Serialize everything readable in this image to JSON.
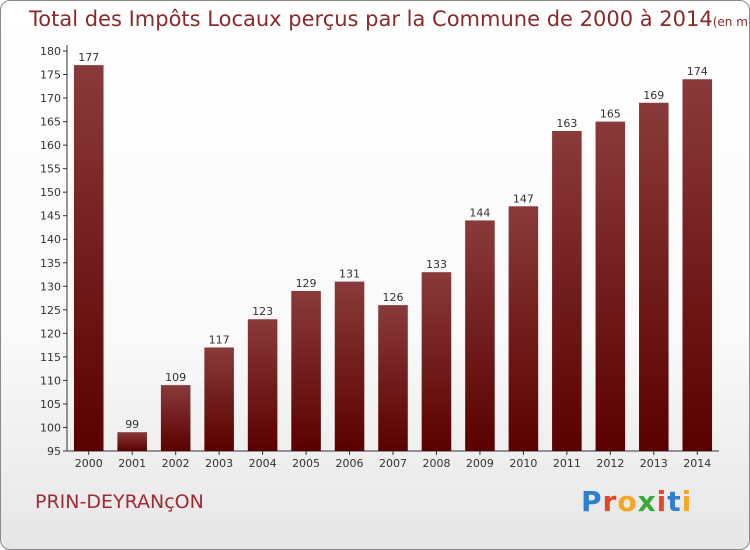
{
  "header": {
    "title": "Total des Impôts Locaux perçus par la Commune de 2000 à 2014",
    "subtitle": "(en milliers d'€)"
  },
  "commune_label": "PRIN-DEYRANçON",
  "logo": {
    "text": "Proxiti",
    "letters": [
      {
        "ch": "P",
        "color": "#2f7fd0"
      },
      {
        "ch": "r",
        "color": "#e8452a"
      },
      {
        "ch": "o",
        "color": "#f5a623"
      },
      {
        "ch": "x",
        "color": "#3aaa35"
      },
      {
        "ch": "i",
        "color": "#e8452a"
      },
      {
        "ch": "t",
        "color": "#2f7fd0"
      },
      {
        "ch": "i",
        "color": "#f5a623"
      }
    ]
  },
  "colors": {
    "bar_top": "#8a3a3a",
    "bar_bottom": "#5a0000",
    "title": "#8a2a2a",
    "commune": "#a02a35"
  },
  "chart_data": {
    "type": "bar",
    "title": "Total des Impôts Locaux perçus par la Commune de 2000 à 2014",
    "subtitle": "(en milliers d'€)",
    "categories": [
      "2000",
      "2001",
      "2002",
      "2003",
      "2004",
      "2005",
      "2006",
      "2007",
      "2008",
      "2009",
      "2010",
      "2011",
      "2012",
      "2013",
      "2014"
    ],
    "values": [
      177,
      99,
      109,
      117,
      123,
      129,
      131,
      126,
      133,
      144,
      147,
      163,
      165,
      169,
      174
    ],
    "ylim": [
      95,
      180
    ],
    "yticks": [
      95,
      100,
      105,
      110,
      115,
      120,
      125,
      130,
      135,
      140,
      145,
      150,
      155,
      160,
      165,
      170,
      175,
      180
    ],
    "grid": false,
    "legend": "none",
    "xlabel": "",
    "ylabel": ""
  }
}
